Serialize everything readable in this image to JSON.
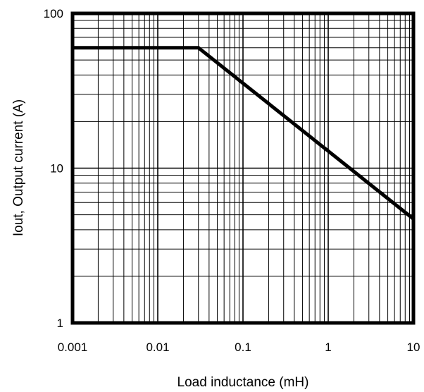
{
  "chart_data": {
    "type": "line",
    "xlabel": "Load inductance (mH)",
    "ylabel": "Iout, Output current (A)",
    "xscale": "log",
    "yscale": "log",
    "xlim": [
      0.001,
      10
    ],
    "ylim": [
      1,
      100
    ],
    "grid": true,
    "legend": "none",
    "xticks": [
      "0.001",
      "0.01",
      "0.1",
      "1",
      "10"
    ],
    "yticks": [
      "1",
      "10",
      "100"
    ],
    "series": [
      {
        "x": [
          0.001,
          0.03,
          10
        ],
        "y": [
          60,
          60,
          4.7
        ]
      }
    ],
    "colors": {
      "line": "#000000",
      "grid": "#000000",
      "frame": "#000000",
      "background": "#ffffff"
    }
  }
}
